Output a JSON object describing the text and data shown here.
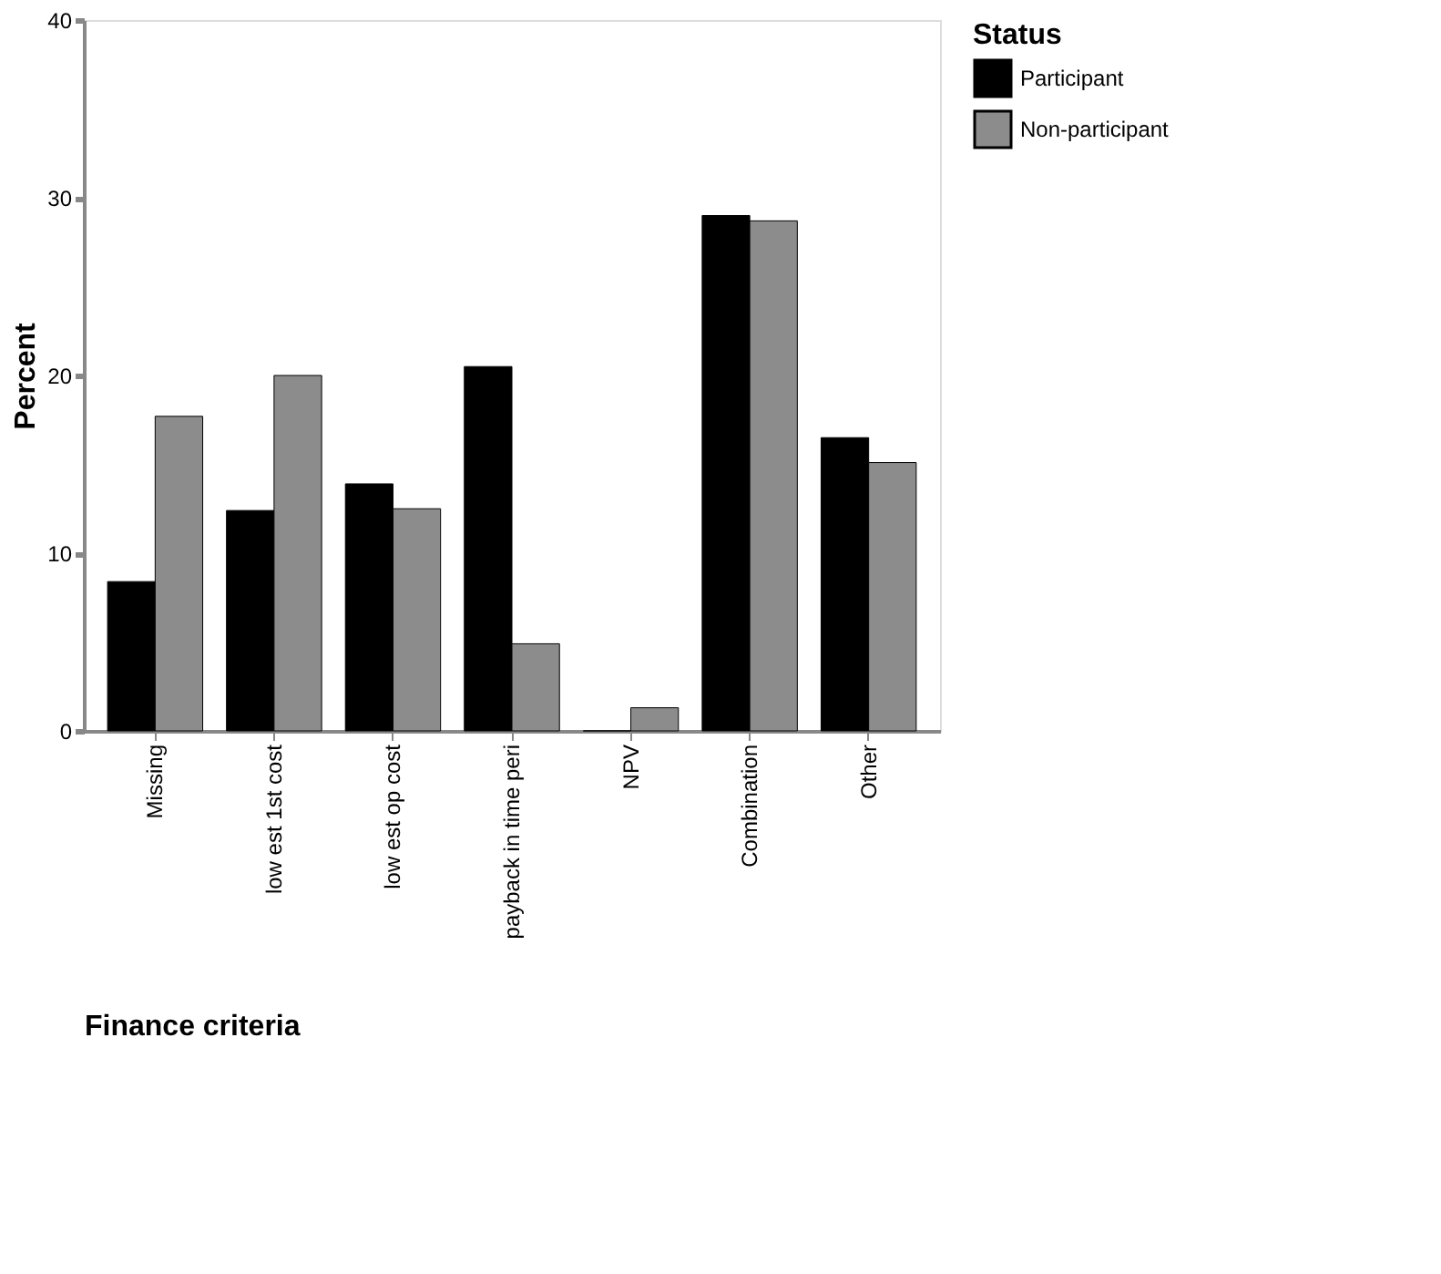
{
  "chart_data": {
    "type": "bar",
    "xlabel": "Finance criteria",
    "ylabel": "Percent",
    "legend_title": "Status",
    "categories": [
      "Missing",
      "low est 1st cost",
      "low est op cost",
      "payback in time peri",
      "NPV",
      "Combination",
      "Other"
    ],
    "series": [
      {
        "name": "Participant",
        "color": "#000000",
        "values": [
          8.4,
          12.4,
          13.9,
          20.5,
          0,
          29.0,
          16.5
        ]
      },
      {
        "name": "Non-participant",
        "color": "#8c8c8c",
        "values": [
          17.7,
          20.0,
          12.5,
          4.9,
          1.3,
          28.7,
          15.1
        ]
      }
    ],
    "ylim": [
      0,
      40
    ],
    "yticks": [
      0,
      10,
      20,
      30,
      40
    ],
    "grid": false,
    "legend": "right"
  }
}
